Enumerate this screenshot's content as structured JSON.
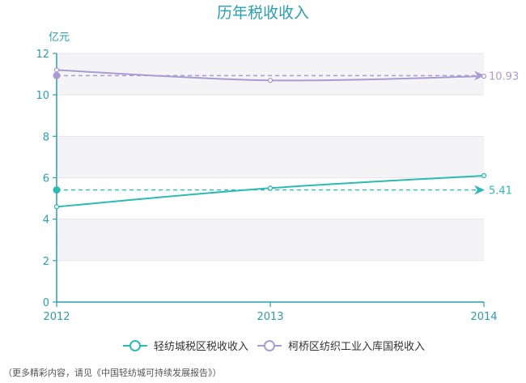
{
  "chart_data": {
    "type": "line",
    "title": "历年税收收入",
    "ylabel": "亿元",
    "xlabel": "",
    "x": [
      "2012",
      "2013",
      "2014"
    ],
    "ylim": [
      0,
      12
    ],
    "yticks": [
      0,
      2,
      4,
      6,
      8,
      10,
      12
    ],
    "grid": true,
    "legend_position": "bottom",
    "series": [
      {
        "name": "轻纺城税区税收收入",
        "values": [
          4.6,
          5.5,
          6.1
        ],
        "color": "#2bbbb2",
        "average": 5.41,
        "average_label": "5.41"
      },
      {
        "name": "柯桥区纺织工业入库国税收入",
        "values": [
          11.2,
          10.7,
          10.9
        ],
        "color": "#a99bd3",
        "average": 10.93,
        "average_label": "10.93"
      }
    ]
  },
  "footnote": "（更多精彩内容，请见《中国轻纺城可持续发展报告》）",
  "colors": {
    "axis": "#2a9fb0",
    "title": "#2a9fb0",
    "band": "#f4f4f7"
  }
}
